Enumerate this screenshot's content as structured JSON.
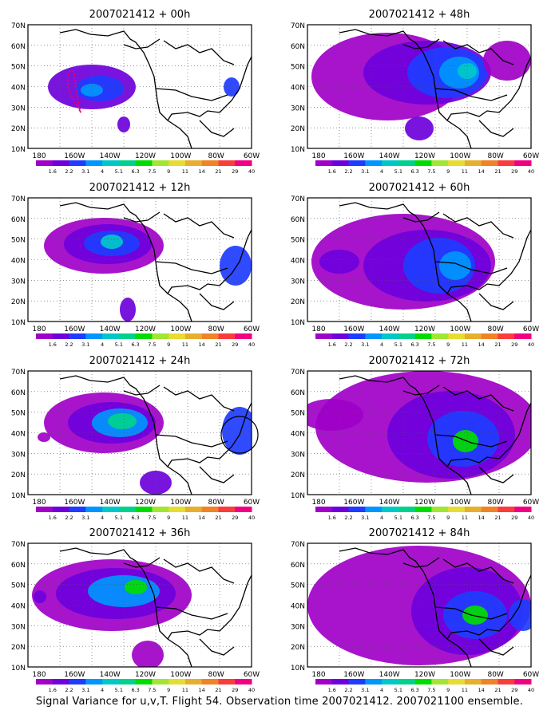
{
  "panels": [
    {
      "title": "2007021412 + 00h",
      "lead": "00h"
    },
    {
      "title": "2007021412 + 48h",
      "lead": "48h"
    },
    {
      "title": "2007021412 + 12h",
      "lead": "12h"
    },
    {
      "title": "2007021412 + 60h",
      "lead": "60h"
    },
    {
      "title": "2007021412 + 24h",
      "lead": "24h"
    },
    {
      "title": "2007021412 + 72h",
      "lead": "72h"
    },
    {
      "title": "2007021412 + 36h",
      "lead": "36h"
    },
    {
      "title": "2007021412 + 84h",
      "lead": "84h"
    }
  ],
  "axes": {
    "lat_labels": [
      "70N",
      "60N",
      "50N",
      "40N",
      "30N",
      "20N",
      "10N"
    ],
    "lon_labels": [
      "180",
      "160W",
      "140W",
      "120W",
      "100W",
      "80W",
      "60W"
    ]
  },
  "colorbar": {
    "labels": [
      "1.6",
      "2.2",
      "3.1",
      "4",
      "5.1",
      "6.3",
      "7.5",
      "9",
      "11",
      "14",
      "21",
      "29",
      "40"
    ],
    "colors": [
      "#a000c8",
      "#6e00dc",
      "#1e3cff",
      "#0096ff",
      "#00c8c8",
      "#00d28c",
      "#00dc00",
      "#a0e632",
      "#e6dc32",
      "#e6af2d",
      "#f08228",
      "#fa3c3c",
      "#f00082"
    ]
  },
  "caption": "Signal Variance for u,v,T. Flight 54. Observation time 2007021412. 2007021100 ensemble."
}
